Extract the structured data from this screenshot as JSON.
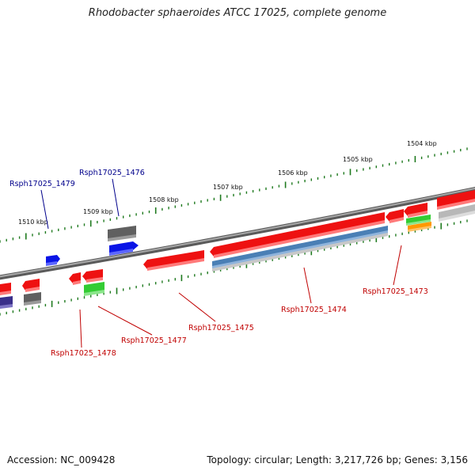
{
  "title": "Rhodobacter sphaeroides ATCC 17025, complete genome",
  "footer": {
    "accession": "Accession: NC_009428",
    "summary": "Topology: circular; Length: 3,217,726 bp; Genes: 3,156"
  },
  "scale": {
    "unit": "kbp",
    "ticks": [
      "1504 kbp",
      "1505 kbp",
      "1506 kbp",
      "1507 kbp",
      "1508 kbp",
      "1509 kbp",
      "1510 kbp"
    ]
  },
  "colors": {
    "backbone": "#808080",
    "tick": "#1f7a1f",
    "label_upper": "#00008b",
    "label_lower": "#c00000",
    "red": "#ee1111",
    "blue": "#0a14e6",
    "dark_gray": "#606060",
    "green": "#33cc33",
    "orange": "#ff9900",
    "steel_blue": "#4a7fb5",
    "light_gray": "#b8b8b8",
    "purple": "#3a2f8a"
  },
  "gene_labels": [
    {
      "id": "Rsph17025_1479",
      "text": "Rsph17025_1479",
      "side": "upper"
    },
    {
      "id": "Rsph17025_1476",
      "text": "Rsph17025_1476",
      "side": "upper"
    },
    {
      "id": "Rsph17025_1473",
      "text": "Rsph17025_1473",
      "side": "lower"
    },
    {
      "id": "Rsph17025_1474",
      "text": "Rsph17025_1474",
      "side": "lower"
    },
    {
      "id": "Rsph17025_1475",
      "text": "Rsph17025_1475",
      "side": "lower"
    },
    {
      "id": "Rsph17025_1477",
      "text": "Rsph17025_1477",
      "side": "lower"
    },
    {
      "id": "Rsph17025_1478",
      "text": "Rsph17025_1478",
      "side": "lower"
    }
  ]
}
